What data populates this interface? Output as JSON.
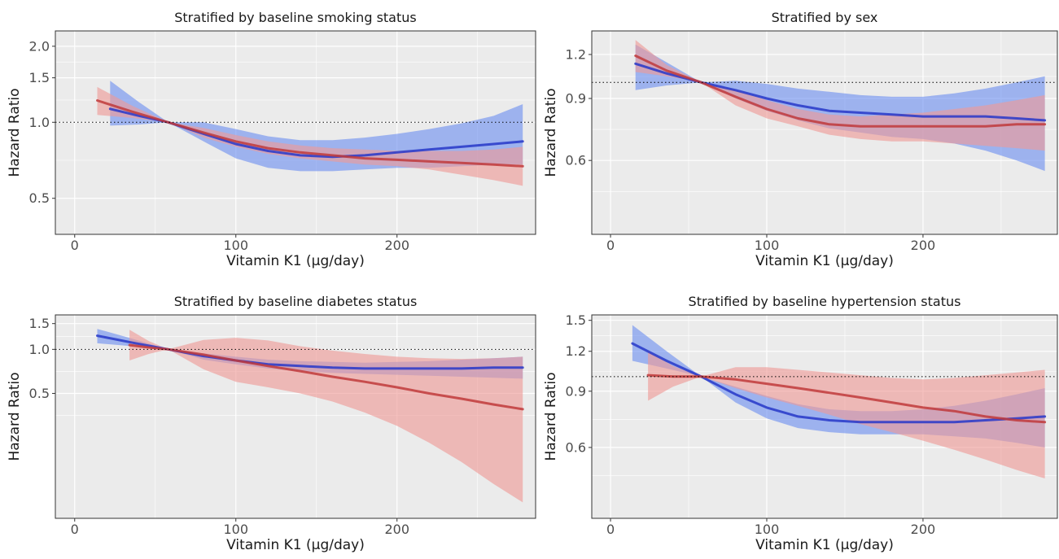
{
  "chart_data": [
    {
      "type": "line",
      "title": "Stratified by baseline smoking status",
      "xlabel": "Vitamin K1 (μg/day)",
      "ylabel": "Hazard Ratio",
      "xlim": [
        -12,
        286
      ],
      "ylim": [
        0.36,
        2.3
      ],
      "y_scale": "log",
      "x_ticks": [
        0,
        100,
        200
      ],
      "x_tick_labels": [
        "0",
        "100",
        "200"
      ],
      "y_ticks": [
        0.5,
        1.0,
        1.5,
        2.0
      ],
      "y_tick_labels": [
        "0.5",
        "1.0",
        "1.5",
        "2.0"
      ],
      "reference_line": 1.0,
      "legend": "none",
      "series": [
        {
          "color": "#2737c8",
          "band_color": "#6d8ff0",
          "x": [
            22,
            40,
            58,
            80,
            100,
            120,
            140,
            160,
            180,
            200,
            220,
            240,
            260,
            278
          ],
          "y": [
            1.13,
            1.06,
            1.0,
            0.9,
            0.82,
            0.77,
            0.74,
            0.73,
            0.74,
            0.76,
            0.78,
            0.8,
            0.82,
            0.84
          ],
          "lower": [
            0.97,
            0.98,
            1.0,
            0.84,
            0.72,
            0.66,
            0.64,
            0.64,
            0.65,
            0.66,
            0.66,
            0.67,
            0.68,
            0.68
          ],
          "upper": [
            1.46,
            1.2,
            1.0,
            1.0,
            0.94,
            0.88,
            0.85,
            0.85,
            0.87,
            0.9,
            0.94,
            0.99,
            1.06,
            1.18
          ]
        },
        {
          "color": "#c0393b",
          "band_color": "#ef9a96",
          "x": [
            14,
            36,
            58,
            80,
            100,
            120,
            140,
            160,
            180,
            200,
            220,
            240,
            260,
            278
          ],
          "y": [
            1.22,
            1.1,
            1.0,
            0.91,
            0.84,
            0.79,
            0.76,
            0.74,
            0.72,
            0.71,
            0.7,
            0.69,
            0.68,
            0.67
          ],
          "lower": [
            1.07,
            1.04,
            1.0,
            0.87,
            0.8,
            0.75,
            0.72,
            0.7,
            0.68,
            0.67,
            0.65,
            0.62,
            0.59,
            0.56
          ],
          "upper": [
            1.38,
            1.16,
            1.0,
            0.95,
            0.89,
            0.84,
            0.81,
            0.79,
            0.78,
            0.77,
            0.77,
            0.77,
            0.78,
            0.8
          ]
        }
      ]
    },
    {
      "type": "line",
      "title": "Stratified by sex",
      "xlabel": "Vitamin K1 (μg/day)",
      "ylabel": "Hazard Ratio",
      "xlim": [
        -12,
        286
      ],
      "ylim": [
        0.37,
        1.4
      ],
      "y_scale": "log",
      "x_ticks": [
        0,
        100,
        200
      ],
      "x_tick_labels": [
        "0",
        "100",
        "200"
      ],
      "y_ticks": [
        0.6,
        0.9,
        1.2
      ],
      "y_tick_labels": [
        "0.6",
        "0.9",
        "1.2"
      ],
      "reference_line": 1.0,
      "legend": "none",
      "series": [
        {
          "color": "#2737c8",
          "band_color": "#6d8ff0",
          "x": [
            16,
            36,
            58,
            80,
            100,
            120,
            140,
            160,
            180,
            200,
            220,
            240,
            260,
            278
          ],
          "y": [
            1.13,
            1.06,
            1.0,
            0.95,
            0.9,
            0.86,
            0.83,
            0.82,
            0.81,
            0.8,
            0.8,
            0.8,
            0.79,
            0.78
          ],
          "lower": [
            0.95,
            0.98,
            1.0,
            0.9,
            0.83,
            0.78,
            0.74,
            0.72,
            0.7,
            0.69,
            0.67,
            0.64,
            0.6,
            0.56
          ],
          "upper": [
            1.28,
            1.14,
            1.0,
            1.01,
            0.99,
            0.96,
            0.94,
            0.92,
            0.91,
            0.91,
            0.93,
            0.96,
            1.0,
            1.04
          ]
        },
        {
          "color": "#c0393b",
          "band_color": "#ef9a96",
          "x": [
            16,
            36,
            58,
            80,
            100,
            120,
            140,
            160,
            180,
            200,
            220,
            240,
            260,
            278
          ],
          "y": [
            1.19,
            1.08,
            1.0,
            0.91,
            0.84,
            0.79,
            0.76,
            0.75,
            0.75,
            0.75,
            0.75,
            0.75,
            0.76,
            0.76
          ],
          "lower": [
            1.07,
            1.04,
            1.0,
            0.86,
            0.79,
            0.75,
            0.71,
            0.69,
            0.68,
            0.68,
            0.67,
            0.66,
            0.65,
            0.64
          ],
          "upper": [
            1.32,
            1.12,
            1.0,
            0.95,
            0.89,
            0.84,
            0.81,
            0.8,
            0.81,
            0.82,
            0.84,
            0.86,
            0.89,
            0.92
          ]
        }
      ]
    },
    {
      "type": "line",
      "title": "Stratified by baseline diabetes status",
      "xlabel": "Vitamin K1 (μg/day)",
      "ylabel": "Hazard Ratio",
      "xlim": [
        -12,
        286
      ],
      "ylim": [
        0.07,
        1.72
      ],
      "y_scale": "log",
      "x_ticks": [
        0,
        100,
        200
      ],
      "x_tick_labels": [
        "0",
        "100",
        "200"
      ],
      "y_ticks": [
        0.5,
        1.0,
        1.5
      ],
      "y_tick_labels": [
        "0.5",
        "1.0",
        "1.5"
      ],
      "reference_line": 1.0,
      "legend": "none",
      "series": [
        {
          "color": "#2737c8",
          "band_color": "#6d8ff0",
          "x": [
            14,
            36,
            58,
            80,
            100,
            120,
            140,
            160,
            180,
            200,
            220,
            240,
            260,
            278
          ],
          "y": [
            1.24,
            1.11,
            1.0,
            0.9,
            0.84,
            0.79,
            0.77,
            0.75,
            0.74,
            0.74,
            0.74,
            0.74,
            0.75,
            0.75
          ],
          "lower": [
            1.1,
            1.05,
            1.0,
            0.85,
            0.79,
            0.74,
            0.71,
            0.69,
            0.68,
            0.67,
            0.66,
            0.65,
            0.64,
            0.63
          ],
          "upper": [
            1.38,
            1.18,
            1.0,
            0.94,
            0.89,
            0.85,
            0.83,
            0.82,
            0.81,
            0.82,
            0.83,
            0.85,
            0.87,
            0.89
          ]
        },
        {
          "color": "#c0393b",
          "band_color": "#ef9a96",
          "x": [
            34,
            46,
            58,
            80,
            100,
            120,
            140,
            160,
            180,
            200,
            220,
            240,
            260,
            278
          ],
          "y": [
            1.07,
            1.03,
            1.0,
            0.92,
            0.84,
            0.77,
            0.71,
            0.65,
            0.6,
            0.55,
            0.5,
            0.46,
            0.42,
            0.39
          ],
          "lower": [
            0.84,
            0.93,
            1.0,
            0.73,
            0.6,
            0.55,
            0.5,
            0.44,
            0.37,
            0.3,
            0.23,
            0.17,
            0.12,
            0.09
          ],
          "upper": [
            1.36,
            1.14,
            1.0,
            1.16,
            1.2,
            1.15,
            1.05,
            0.98,
            0.93,
            0.89,
            0.87,
            0.86,
            0.87,
            0.89
          ]
        }
      ]
    },
    {
      "type": "line",
      "title": "Stratified by baseline hypertension status",
      "xlabel": "Vitamin K1 (μg/day)",
      "ylabel": "Hazard Ratio",
      "xlim": [
        -12,
        286
      ],
      "ylim": [
        0.36,
        1.56
      ],
      "y_scale": "log",
      "x_ticks": [
        0,
        100,
        200
      ],
      "x_tick_labels": [
        "0",
        "100",
        "200"
      ],
      "y_ticks": [
        0.6,
        0.9,
        1.2,
        1.5
      ],
      "y_tick_labels": [
        "0.6",
        "0.9",
        "1.2",
        "1.5"
      ],
      "reference_line": 1.0,
      "legend": "none",
      "series": [
        {
          "color": "#2737c8",
          "band_color": "#6d8ff0",
          "x": [
            14,
            36,
            58,
            80,
            100,
            120,
            140,
            160,
            180,
            200,
            220,
            240,
            260,
            278
          ],
          "y": [
            1.27,
            1.12,
            1.0,
            0.88,
            0.8,
            0.75,
            0.73,
            0.72,
            0.72,
            0.72,
            0.72,
            0.73,
            0.74,
            0.75
          ],
          "lower": [
            1.12,
            1.06,
            1.0,
            0.83,
            0.74,
            0.69,
            0.67,
            0.66,
            0.66,
            0.66,
            0.65,
            0.64,
            0.62,
            0.6
          ],
          "upper": [
            1.45,
            1.2,
            1.0,
            0.93,
            0.87,
            0.82,
            0.79,
            0.78,
            0.78,
            0.79,
            0.81,
            0.84,
            0.88,
            0.92
          ]
        },
        {
          "color": "#c0393b",
          "band_color": "#ef9a96",
          "x": [
            24,
            40,
            58,
            80,
            100,
            120,
            140,
            160,
            180,
            200,
            220,
            240,
            260,
            278
          ],
          "y": [
            1.01,
            1.0,
            1.0,
            0.98,
            0.95,
            0.92,
            0.89,
            0.86,
            0.83,
            0.8,
            0.78,
            0.75,
            0.73,
            0.72
          ],
          "lower": [
            0.84,
            0.93,
            1.0,
            0.92,
            0.86,
            0.81,
            0.76,
            0.71,
            0.67,
            0.63,
            0.59,
            0.55,
            0.51,
            0.48
          ],
          "upper": [
            1.2,
            1.08,
            1.0,
            1.07,
            1.07,
            1.05,
            1.03,
            1.01,
            0.99,
            0.98,
            0.99,
            1.01,
            1.03,
            1.05
          ]
        }
      ]
    }
  ]
}
